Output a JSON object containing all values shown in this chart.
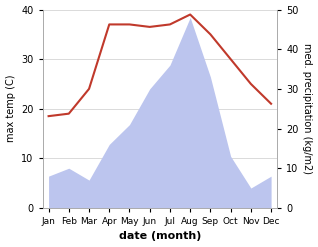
{
  "months": [
    "Jan",
    "Feb",
    "Mar",
    "Apr",
    "May",
    "Jun",
    "Jul",
    "Aug",
    "Sep",
    "Oct",
    "Nov",
    "Dec"
  ],
  "temperature": [
    18.5,
    19,
    24,
    37,
    37,
    36.5,
    37,
    39,
    35,
    30,
    25,
    21
  ],
  "precipitation": [
    8,
    10,
    7,
    16,
    21,
    30,
    36,
    48,
    33,
    13,
    5,
    8
  ],
  "temp_color": "#c0392b",
  "precip_fill_color": "#bcc5ee",
  "ylabel_left": "max temp (C)",
  "ylabel_right": "med. precipitation (kg/m2)",
  "xlabel": "date (month)",
  "ylim_left": [
    0,
    40
  ],
  "ylim_right": [
    0,
    50
  ],
  "yticks_left": [
    0,
    10,
    20,
    30,
    40
  ],
  "yticks_right": [
    0,
    10,
    20,
    30,
    40,
    50
  ],
  "bg_color": "#ffffff"
}
